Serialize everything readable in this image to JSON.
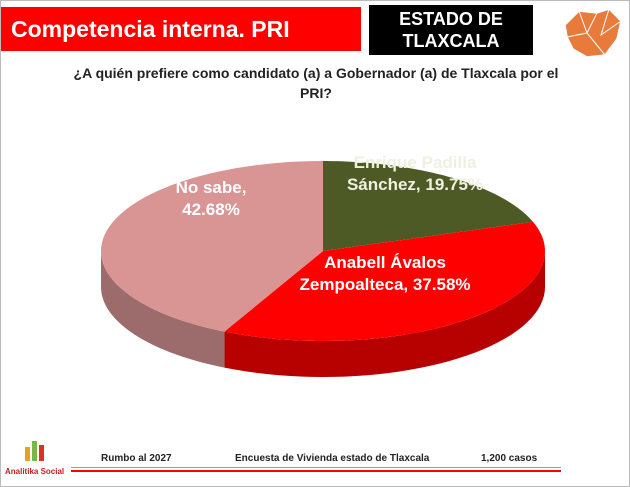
{
  "header": {
    "title": "Competencia interna. PRI",
    "state": "ESTADO DE TLAXCALA"
  },
  "chart_data": {
    "type": "pie3d",
    "title": "¿A quién prefiere como candidato (a) a Gobernador (a) de Tlaxcala por el PRI?",
    "values": [
      19.75,
      37.58,
      42.68
    ],
    "value_labels": [
      "Enrique Padilla Sánchez, 19.75%",
      "Anabell Ávalos Zempoalteca, 37.58%",
      "No sabe, 42.68%"
    ],
    "colors": [
      "#4e5a26",
      "#fe0000",
      "#d99594"
    ]
  },
  "footer": {
    "logo": "Analitika Social",
    "left": "Rumbo al 2027",
    "center": "Encuesta de Vivienda estado de Tlaxcala",
    "right": "1,200 casos"
  }
}
